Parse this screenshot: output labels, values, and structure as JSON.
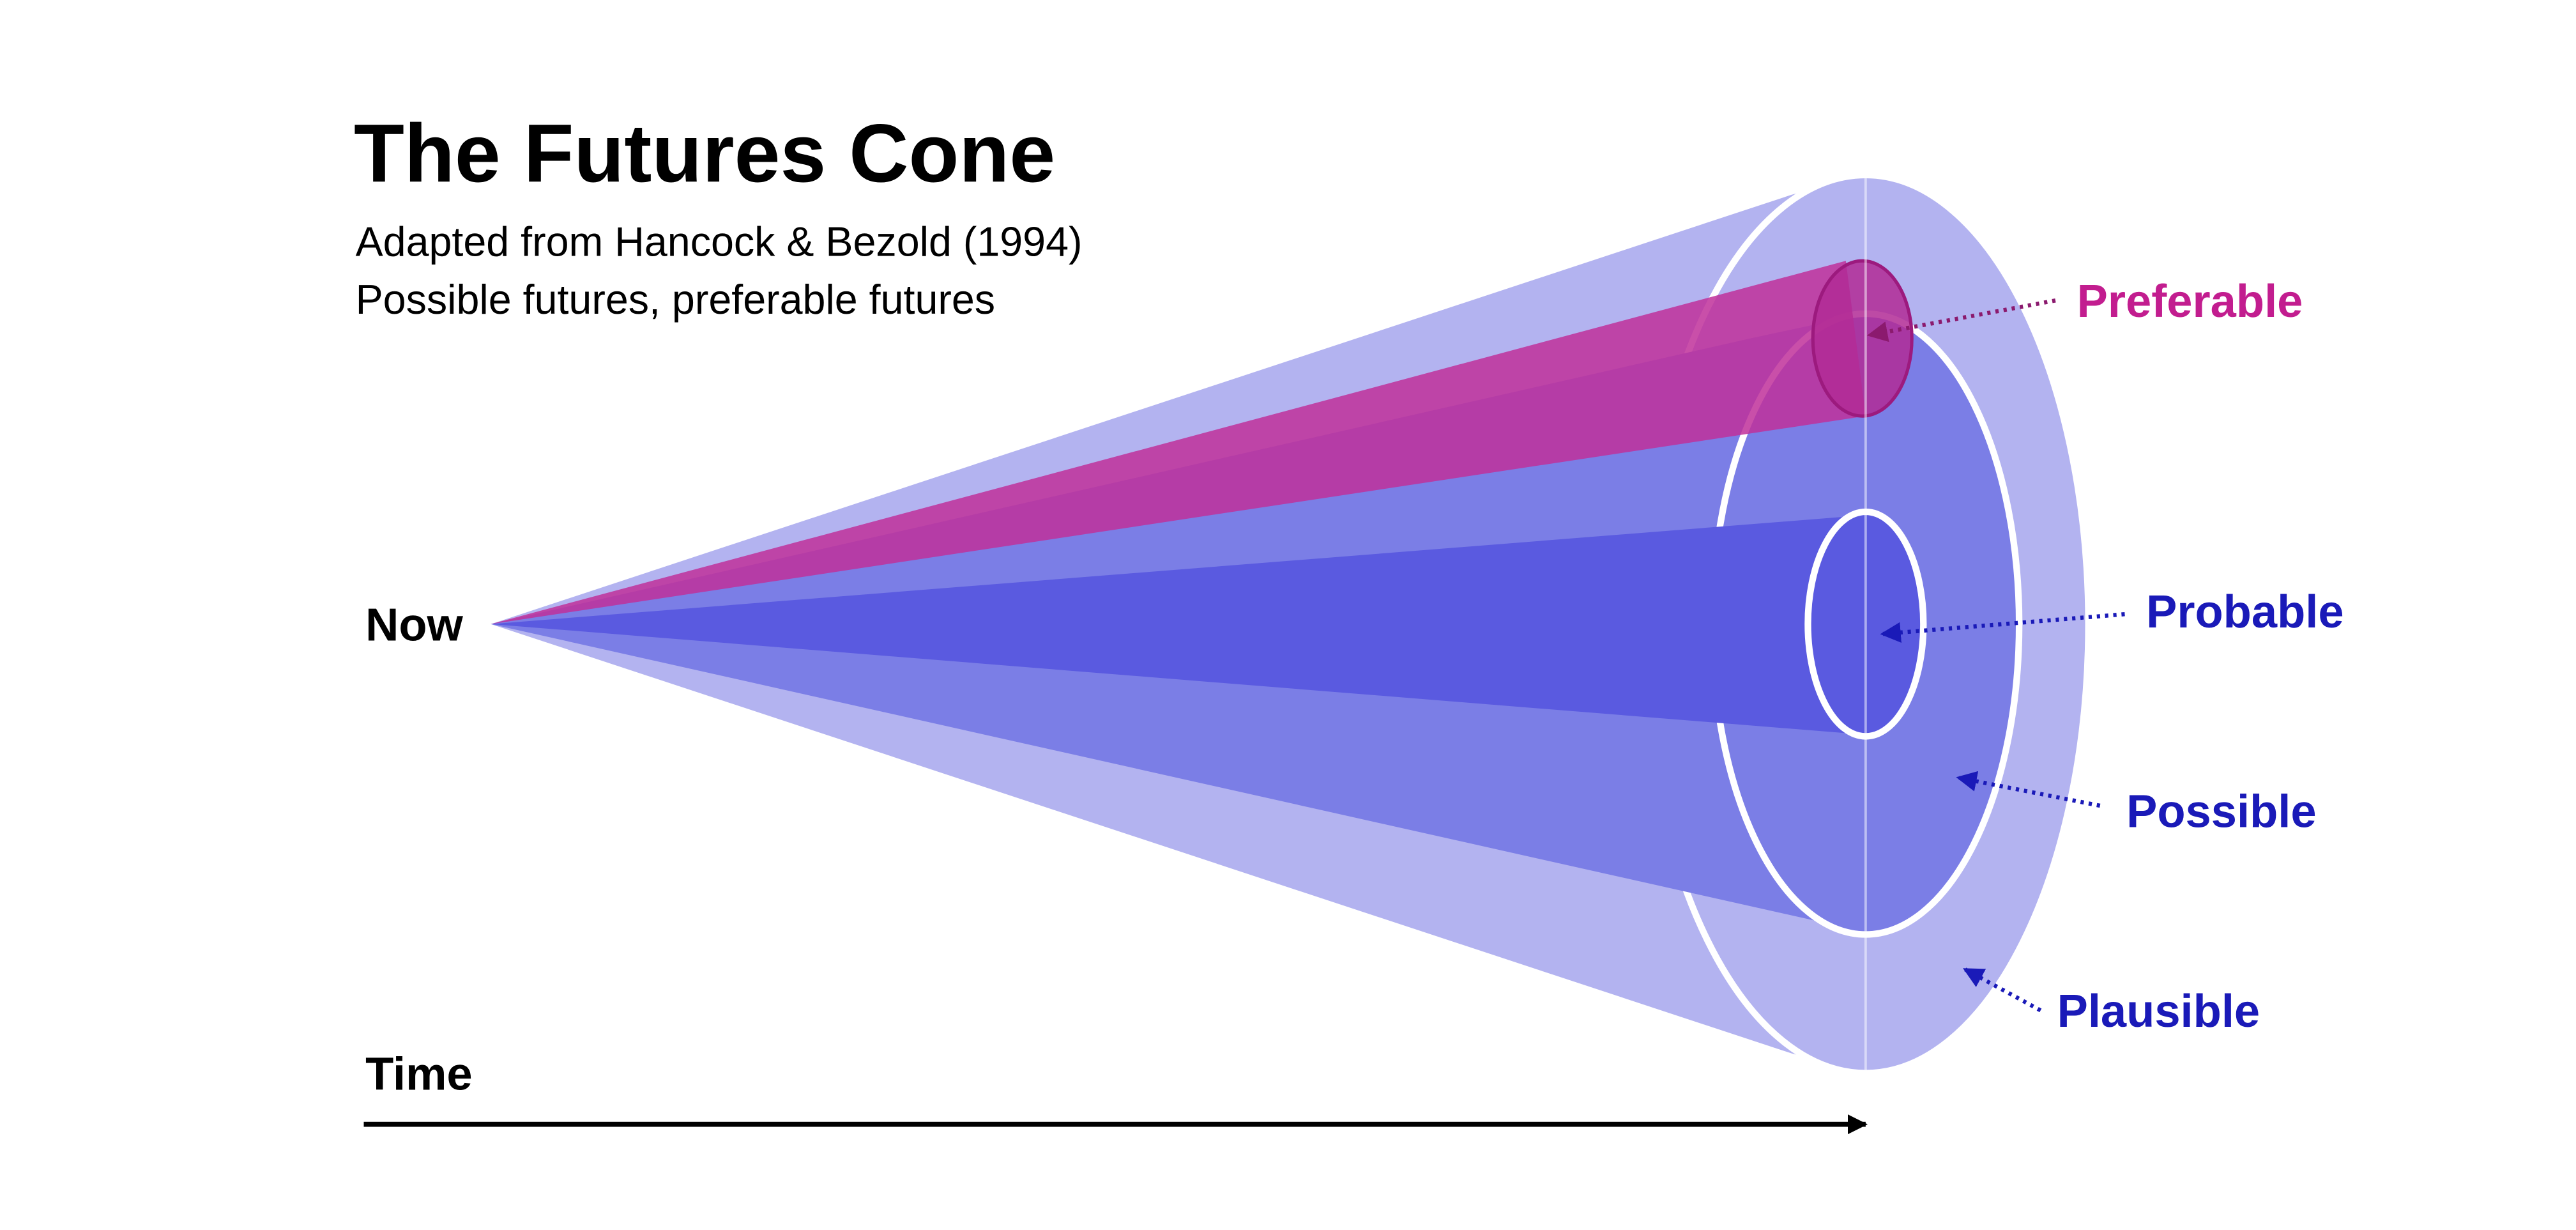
{
  "header": {
    "title": "The Futures Cone",
    "subtitle_lines": [
      "Adapted from Hancock & Bezold (1994)",
      "Possible futures, preferable futures"
    ]
  },
  "axis": {
    "origin_label": "Now",
    "time_label": "Time"
  },
  "cones": [
    {
      "label": "Preferable"
    },
    {
      "label": "Probable"
    },
    {
      "label": "Possible"
    },
    {
      "label": "Plausible"
    }
  ]
}
